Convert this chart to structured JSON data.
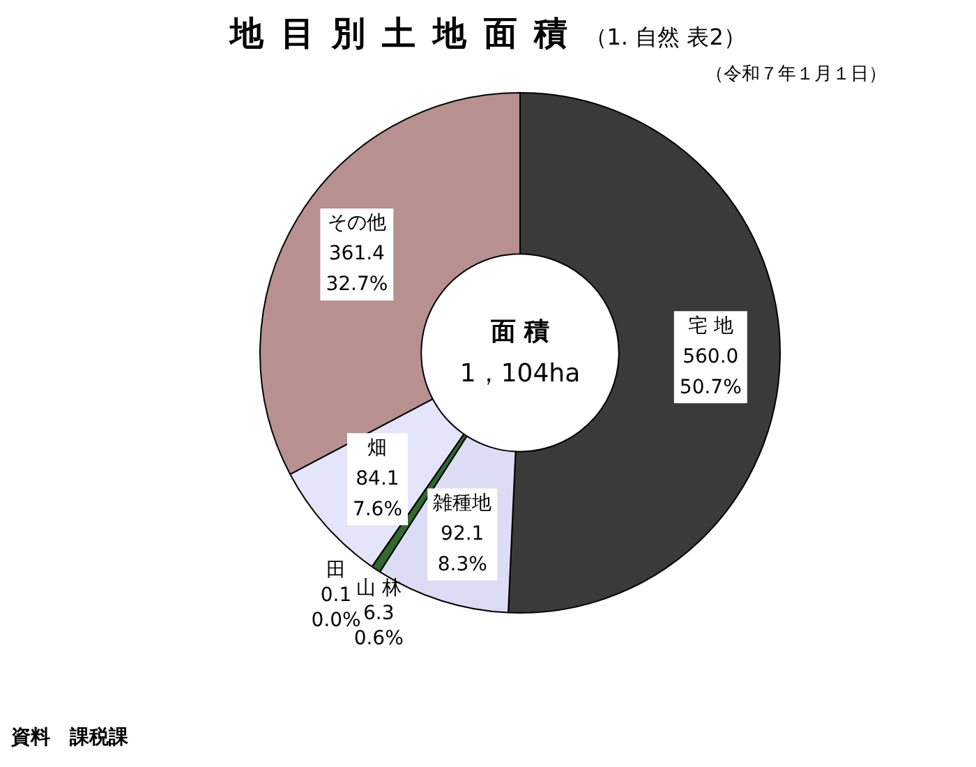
{
  "chart_data": {
    "type": "donut",
    "title": "地 目 別 土 地 面 積",
    "subtitle": "（1. 自然 表2）",
    "categories": [
      "宅 地",
      "雑種地",
      "山 林",
      "田",
      "畑",
      "その他"
    ],
    "values": [
      560.0,
      92.1,
      6.3,
      0.1,
      84.1,
      361.4
    ],
    "value_labels": [
      "560.0\n50.7%",
      "92.1\n8.3%",
      "6.3\n0.6%",
      "0.1\n0.0%",
      "84.1\n7.6%",
      "361.4\n32.7%"
    ],
    "colors": [
      "#3a3a3a",
      "#dcdcf5",
      "#2f6b2f",
      "#ffffff",
      "#e4e4fa",
      "#b89090"
    ],
    "legend": false,
    "annotations": [
      "面 積",
      "1，104ha",
      "（令和７年１月１日）",
      "資料　課税課"
    ]
  }
}
